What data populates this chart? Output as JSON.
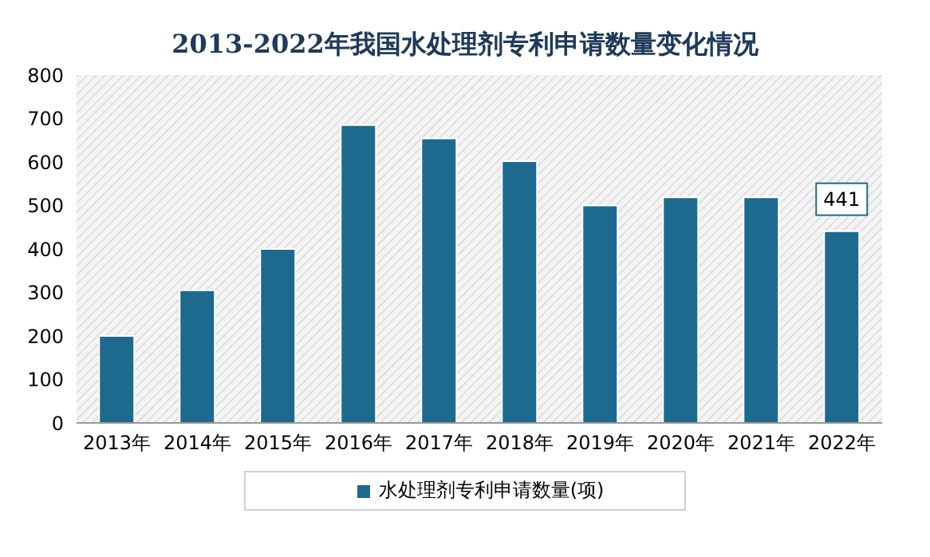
{
  "chart_data": {
    "type": "bar",
    "title": "2013-2022年我国水处理剂专利申请数量变化情况",
    "categories": [
      "2013年",
      "2014年",
      "2015年",
      "2016年",
      "2017年",
      "2018年",
      "2019年",
      "2020年",
      "2021年",
      "2022年"
    ],
    "series": [
      {
        "name": "水处理剂专利申请数量(项)",
        "color": "#1d6a8e",
        "values": [
          200,
          305,
          400,
          685,
          654,
          602,
          500,
          519,
          519,
          441
        ],
        "value_labels": [
          null,
          null,
          null,
          null,
          null,
          null,
          null,
          null,
          null,
          "441"
        ]
      }
    ],
    "ylim": [
      0,
      800
    ],
    "yticks": [
      0,
      100,
      200,
      300,
      400,
      500,
      600,
      700,
      800
    ],
    "legend": "bottom"
  }
}
